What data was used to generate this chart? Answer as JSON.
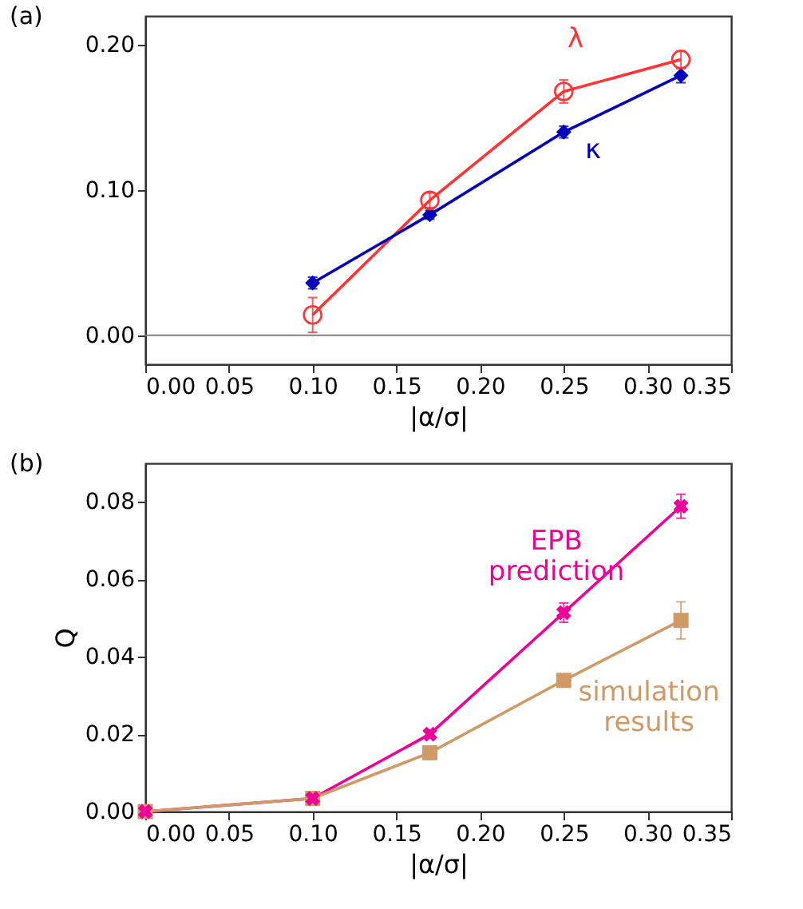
{
  "chart_data": [
    {
      "type": "line",
      "title": "(a)",
      "xlabel": "|α/σ|",
      "xlim": [
        0,
        0.35
      ],
      "xticks": [
        {
          "value": 0,
          "label": "0.00"
        },
        {
          "value": 0.05,
          "label": "0.05"
        },
        {
          "value": 0.1,
          "label": "0.10"
        },
        {
          "value": 0.15,
          "label": "0.15"
        },
        {
          "value": 0.2,
          "label": "0.20"
        },
        {
          "value": 0.25,
          "label": "0.25"
        },
        {
          "value": 0.3,
          "label": "0.30"
        },
        {
          "value": 0.35,
          "label": "0.35"
        }
      ],
      "ylim": [
        -0.02,
        0.22
      ],
      "yticks": [
        {
          "value": 0,
          "label": "0.00"
        },
        {
          "value": 0.1,
          "label": "0.10"
        },
        {
          "value": 0.2,
          "label": "0.20"
        }
      ],
      "grid": false,
      "legend": false,
      "ref_lines": [
        {
          "axis": "y",
          "value": 0,
          "color": "#808080"
        }
      ],
      "series": [
        {
          "name": "λ",
          "color": "#ff3333",
          "marker": "circle",
          "x": [
            0.1,
            0.17,
            0.25,
            0.32
          ],
          "values": [
            0.014,
            0.093,
            0.168,
            0.19
          ],
          "errors": [
            0.012,
            0.005,
            0.008,
            0.006
          ]
        },
        {
          "name": "κ",
          "color": "#0000bb",
          "marker": "diamond",
          "x": [
            0.1,
            0.17,
            0.25,
            0.32
          ],
          "values": [
            0.036,
            0.083,
            0.14,
            0.179
          ],
          "errors": [
            0.004,
            0.003,
            0.004,
            0.005
          ]
        }
      ]
    },
    {
      "type": "line",
      "title": "(b)",
      "xlabel": "|α/σ|",
      "ylabel": "Q",
      "xlim": [
        0,
        0.35
      ],
      "xticks": [
        {
          "value": 0,
          "label": "0.00"
        },
        {
          "value": 0.05,
          "label": "0.05"
        },
        {
          "value": 0.1,
          "label": "0.10"
        },
        {
          "value": 0.15,
          "label": "0.15"
        },
        {
          "value": 0.2,
          "label": "0.20"
        },
        {
          "value": 0.25,
          "label": "0.25"
        },
        {
          "value": 0.3,
          "label": "0.30"
        },
        {
          "value": 0.35,
          "label": "0.35"
        }
      ],
      "ylim": [
        0,
        0.09
      ],
      "yticks": [
        {
          "value": 0,
          "label": "0.00"
        },
        {
          "value": 0.02,
          "label": "0.02"
        },
        {
          "value": 0.04,
          "label": "0.04"
        },
        {
          "value": 0.06,
          "label": "0.06"
        },
        {
          "value": 0.08,
          "label": "0.08"
        }
      ],
      "grid": false,
      "legend": false,
      "series": [
        {
          "name": "EPB prediction",
          "color": "#ee0099",
          "marker": "cross",
          "x": [
            0,
            0.1,
            0.17,
            0.25,
            0.32
          ],
          "values": [
            0,
            0.0034,
            0.02,
            0.0514,
            0.0789
          ],
          "errors": [
            0,
            0.0005,
            0.001,
            0.0025,
            0.0031
          ]
        },
        {
          "name": "simulation results",
          "color": "#d09a66",
          "marker": "square",
          "x": [
            0,
            0.1,
            0.17,
            0.25,
            0.32
          ],
          "values": [
            0,
            0.0034,
            0.0152,
            0.0339,
            0.0494
          ],
          "errors": [
            0,
            0.0005,
            0.001,
            0.0015,
            0.0048
          ]
        }
      ]
    }
  ]
}
